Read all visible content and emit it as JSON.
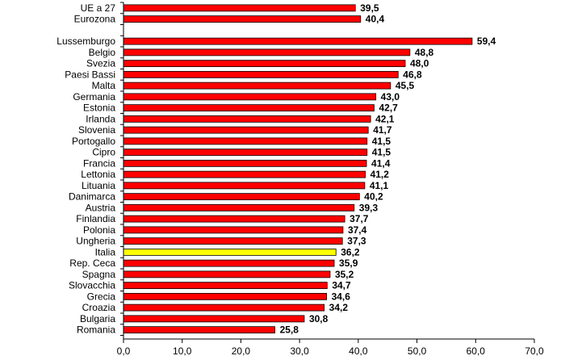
{
  "chart_data": {
    "type": "bar",
    "orientation": "horizontal",
    "title": "",
    "xlabel": "",
    "ylabel": "",
    "xlim": [
      0,
      70
    ],
    "x_ticks": [
      "0,0",
      "10,0",
      "20,0",
      "30,0",
      "40,0",
      "50,0",
      "60,0",
      "70,0"
    ],
    "grid": false,
    "legend": "none",
    "bar_color": "#ff0000",
    "highlight_color": "#ffff00",
    "highlight_category": "Italia",
    "categories": [
      "UE a 27",
      "Eurozona",
      "",
      "Lussemburgo",
      "Belgio",
      "Svezia",
      "Paesi Bassi",
      "Malta",
      "Germania",
      "Estonia",
      "Irlanda",
      "Slovenia",
      "Portogallo",
      "Cipro",
      "Francia",
      "Lettonia",
      "Lituania",
      "Danimarca",
      "Austria",
      "Finlandia",
      "Polonia",
      "Ungheria",
      "Italia",
      "Rep. Ceca",
      "Spagna",
      "Slovacchia",
      "Grecia",
      "Croazia",
      "Bulgaria",
      "Romania"
    ],
    "values": [
      39.5,
      40.4,
      null,
      59.4,
      48.8,
      48.0,
      46.8,
      45.5,
      43.0,
      42.7,
      42.1,
      41.7,
      41.5,
      41.5,
      41.4,
      41.2,
      41.1,
      40.2,
      39.3,
      37.7,
      37.4,
      37.3,
      36.2,
      35.9,
      35.2,
      34.7,
      34.6,
      34.2,
      30.8,
      25.8
    ],
    "value_labels": [
      "39,5",
      "40,4",
      "",
      "59,4",
      "48,8",
      "48,0",
      "46,8",
      "45,5",
      "43,0",
      "42,7",
      "42,1",
      "41,7",
      "41,5",
      "41,5",
      "41,4",
      "41,2",
      "41,1",
      "40,2",
      "39,3",
      "37,7",
      "37,4",
      "37,3",
      "36,2",
      "35,9",
      "35,2",
      "34,7",
      "34,6",
      "34,2",
      "30,8",
      "25,8"
    ]
  }
}
